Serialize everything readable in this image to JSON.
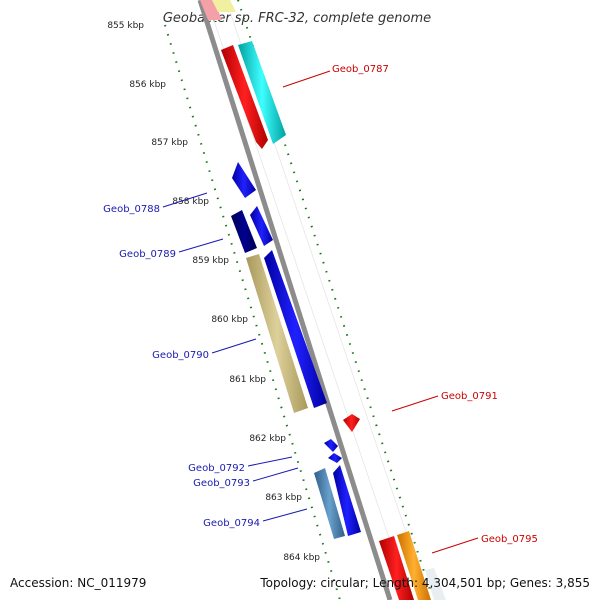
{
  "title": "Geobacter sp. FRC-32, complete genome",
  "ticks": [
    "855 kbp",
    "856 kbp",
    "857 kbp",
    "858 kbp",
    "859 kbp",
    "860 kbp",
    "861 kbp",
    "862 kbp",
    "863 kbp",
    "864 kbp"
  ],
  "labels": [
    {
      "text": "Geob_0787",
      "color": "#cc0000",
      "side": "right"
    },
    {
      "text": "Geob_0788",
      "color": "#1a1ab3",
      "side": "left"
    },
    {
      "text": "Geob_0789",
      "color": "#1a1ab3",
      "side": "left"
    },
    {
      "text": "Geob_0790",
      "color": "#1a1ab3",
      "side": "left"
    },
    {
      "text": "Geob_0791",
      "color": "#cc0000",
      "side": "right"
    },
    {
      "text": "Geob_0792",
      "color": "#1a1ab3",
      "side": "left"
    },
    {
      "text": "Geob_0793",
      "color": "#1a1ab3",
      "side": "left"
    },
    {
      "text": "Geob_0794",
      "color": "#1a1ab3",
      "side": "left"
    },
    {
      "text": "Geob_0795",
      "color": "#cc0000",
      "side": "right"
    }
  ],
  "footer": {
    "accession": "Accession: NC_011979",
    "topology": "Topology: circular; Length: 4,304,501 bp; Genes: 3,855"
  },
  "colors": {
    "backbone": "#8c8c8c",
    "tick_dots": "#1a7a1a",
    "forward_red": "#ff0000",
    "cyan": "#00e5e5",
    "blue": "#0000ee",
    "navy": "#00007a",
    "khaki": "#c8b878",
    "steel": "#4682b4",
    "orange": "#ff9900",
    "pink": "#ffb6c1",
    "yellow": "#f0f0a0"
  }
}
